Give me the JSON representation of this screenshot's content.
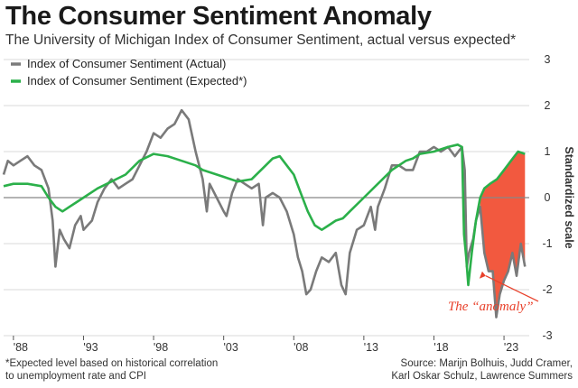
{
  "header": {
    "title": "The Consumer Sentiment Anomaly",
    "subtitle": "The University of Michigan Index of Consumer Sentiment, actual versus expected*"
  },
  "footer": {
    "footnote_line1": "*Expected level based on historical correlation",
    "footnote_line2": "to unemployment rate and CPI",
    "source_line1": "Source: Marijn Bolhuis, Judd Cramer,",
    "source_line2": "Karl Oskar Schulz, Lawrence Summers"
  },
  "colors": {
    "actual": "#7a7a7a",
    "expected": "#2bb04a",
    "anomaly_fill": "#f2593f",
    "annotation": "#e8402a",
    "grid": "#d9d9d9",
    "zero_line": "#888888"
  },
  "chart_data": {
    "type": "line",
    "title": "The Consumer Sentiment Anomaly",
    "subtitle": "The University of Michigan Index of Consumer Sentiment, actual versus expected*",
    "ylabel": "Standardized scale",
    "xlim": [
      1987.3,
      2024.8
    ],
    "ylim": [
      -3,
      3
    ],
    "y_ticks": [
      3,
      2,
      1,
      0,
      -1,
      -2,
      -3
    ],
    "x_ticks": [
      {
        "value": 1988,
        "label": "'88"
      },
      {
        "value": 1993,
        "label": "'93"
      },
      {
        "value": 1998,
        "label": "'98"
      },
      {
        "value": 2003,
        "label": "'03"
      },
      {
        "value": 2008,
        "label": "'08"
      },
      {
        "value": 2013,
        "label": "'13"
      },
      {
        "value": 2018,
        "label": "'18"
      },
      {
        "value": 2023,
        "label": "'23"
      }
    ],
    "grid": "horizontal",
    "legend_position": "top-left",
    "annotation": {
      "text": "The “anomaly”",
      "x": 2019.0,
      "y": -2.45,
      "arrow_to_x": 2021.7,
      "arrow_to_y": -1.7
    },
    "anomaly_range": [
      2021.3,
      2024.5
    ],
    "series": [
      {
        "name": "Index of Consumer Sentiment (Actual)",
        "x": [
          1987.3,
          1987.6,
          1988.0,
          1988.5,
          1989.0,
          1989.5,
          1990.0,
          1990.5,
          1990.8,
          1991.0,
          1991.3,
          1991.6,
          1992.0,
          1992.4,
          1992.8,
          1993.0,
          1993.3,
          1993.6,
          1994.0,
          1994.5,
          1995.0,
          1995.5,
          1996.0,
          1996.5,
          1997.0,
          1997.5,
          1998.0,
          1998.5,
          1999.0,
          1999.5,
          2000.0,
          2000.5,
          2001.0,
          2001.5,
          2001.8,
          2002.0,
          2002.5,
          2003.0,
          2003.2,
          2003.6,
          2004.0,
          2004.5,
          2005.0,
          2005.5,
          2005.8,
          2006.0,
          2006.5,
          2007.0,
          2007.5,
          2008.0,
          2008.3,
          2008.6,
          2008.9,
          2009.2,
          2009.6,
          2010.0,
          2010.5,
          2011.0,
          2011.4,
          2011.7,
          2012.0,
          2012.5,
          2013.0,
          2013.5,
          2013.8,
          2014.0,
          2014.5,
          2015.0,
          2015.5,
          2016.0,
          2016.5,
          2017.0,
          2017.5,
          2018.0,
          2018.5,
          2019.0,
          2019.5,
          2020.0,
          2020.2,
          2020.35,
          2020.5,
          2020.8,
          2021.0,
          2021.3,
          2021.6,
          2021.9,
          2022.2,
          2022.45,
          2022.7,
          2023.0,
          2023.3,
          2023.6,
          2023.9,
          2024.2,
          2024.5
        ],
        "y": [
          0.5,
          0.8,
          0.7,
          0.8,
          0.9,
          0.7,
          0.6,
          0.2,
          -0.5,
          -1.5,
          -0.7,
          -0.9,
          -1.1,
          -0.6,
          -0.4,
          -0.7,
          -0.6,
          -0.5,
          -0.1,
          0.2,
          0.4,
          0.2,
          0.3,
          0.4,
          0.7,
          1.0,
          1.4,
          1.3,
          1.5,
          1.6,
          1.9,
          1.7,
          1.0,
          0.4,
          -0.3,
          0.3,
          0.0,
          -0.3,
          -0.4,
          0.1,
          0.4,
          0.3,
          0.2,
          0.3,
          -0.6,
          0.0,
          0.1,
          0.0,
          -0.3,
          -0.8,
          -1.3,
          -1.6,
          -2.1,
          -2.0,
          -1.6,
          -1.3,
          -1.4,
          -1.2,
          -1.9,
          -2.1,
          -1.2,
          -0.7,
          -0.6,
          -0.2,
          -0.7,
          -0.2,
          0.2,
          0.7,
          0.7,
          0.6,
          0.6,
          1.0,
          1.0,
          1.1,
          1.0,
          1.1,
          0.9,
          1.1,
          0.6,
          -1.5,
          -1.2,
          -0.9,
          -0.5,
          -0.2,
          -1.2,
          -1.6,
          -1.6,
          -2.6,
          -2.1,
          -1.8,
          -1.6,
          -1.2,
          -1.7,
          -1.0,
          -1.5
        ]
      },
      {
        "name": "Index of Consumer Sentiment (Expected*)",
        "x": [
          1987.3,
          1988.0,
          1989.0,
          1990.0,
          1990.5,
          1991.0,
          1991.5,
          1992.0,
          1992.5,
          1993.0,
          1994.0,
          1995.0,
          1996.0,
          1997.0,
          1998.0,
          1999.0,
          2000.0,
          2001.0,
          2001.5,
          2002.0,
          2003.0,
          2004.0,
          2005.0,
          2006.0,
          2006.5,
          2007.0,
          2007.5,
          2008.0,
          2008.5,
          2009.0,
          2009.5,
          2010.0,
          2010.5,
          2011.0,
          2011.5,
          2012.0,
          2013.0,
          2014.0,
          2015.0,
          2016.0,
          2016.5,
          2017.0,
          2018.0,
          2019.0,
          2019.7,
          2020.0,
          2020.15,
          2020.3,
          2020.45,
          2020.7,
          2021.0,
          2021.3,
          2021.6,
          2022.0,
          2022.5,
          2023.0,
          2023.5,
          2024.0,
          2024.5
        ],
        "y": [
          0.25,
          0.3,
          0.3,
          0.25,
          0.0,
          -0.2,
          -0.3,
          -0.2,
          -0.1,
          0.0,
          0.2,
          0.35,
          0.5,
          0.8,
          0.95,
          0.9,
          0.8,
          0.7,
          0.6,
          0.55,
          0.45,
          0.35,
          0.4,
          0.7,
          0.85,
          0.9,
          0.7,
          0.5,
          0.1,
          -0.3,
          -0.6,
          -0.7,
          -0.6,
          -0.5,
          -0.45,
          -0.3,
          0.0,
          0.3,
          0.6,
          0.8,
          0.85,
          0.95,
          1.0,
          1.1,
          1.15,
          1.1,
          -0.8,
          -1.3,
          -1.9,
          -1.2,
          -0.5,
          0.0,
          0.2,
          0.3,
          0.4,
          0.6,
          0.8,
          1.0,
          0.95
        ]
      }
    ]
  }
}
